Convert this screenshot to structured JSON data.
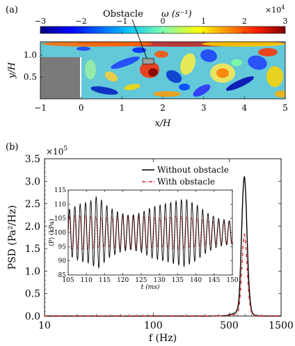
{
  "panel_a": {
    "label": "(a)",
    "colorbar": {
      "title": "Obstacle",
      "symbol": "ω (s⁻¹)",
      "scale_label": "×10",
      "scale_exp": "4",
      "ticks": [
        "−3",
        "−2",
        "−1",
        "0",
        "1",
        "2",
        "3"
      ],
      "range": [
        -3,
        3
      ]
    },
    "xlabel": "x/H",
    "ylabel": "y/H",
    "xticks": [
      "−1",
      "0",
      "1",
      "2",
      "3",
      "4",
      "5"
    ],
    "yticks": [
      "0.5",
      "1.0"
    ],
    "colors": {
      "wall": "#7a7a7a",
      "field_base": "#63c8d8"
    }
  },
  "panel_b": {
    "label": "(b)",
    "chart_data": [
      {
        "type": "line",
        "title": "",
        "xlabel": "f (Hz)",
        "ylabel": "PSD (Pa²/Hz)",
        "y_scale_label": "×10",
        "y_scale_exp": "5",
        "x_scale": "log",
        "xlim": [
          10,
          1500
        ],
        "ylim": [
          0,
          3.5
        ],
        "xticks": [
          "10",
          "100",
          "500",
          "1500"
        ],
        "yticks": [
          "0.0",
          "0.5",
          "1.0",
          "1.5",
          "2.0",
          "2.5",
          "3.0",
          "3.5"
        ],
        "legend_placement": "top-right",
        "series": [
          {
            "name": "Without obstacle",
            "color": "#000000",
            "style": "solid",
            "x": [
              10,
              100,
              300,
              450,
              500,
              550,
              580,
              610,
              630,
              650,
              670,
              690,
              710,
              730,
              760,
              800,
              850,
              900,
              1000,
              1500
            ],
            "y": [
              0.0,
              0.0,
              0.0,
              0.01,
              0.03,
              0.06,
              0.1,
              0.3,
              0.9,
              1.9,
              2.75,
              3.1,
              2.7,
              1.8,
              0.7,
              0.15,
              0.03,
              0.01,
              0.0,
              0.0
            ]
          },
          {
            "name": "With obstacle",
            "color": "#cc1f1f",
            "style": "dashdot",
            "x": [
              10,
              100,
              300,
              450,
              500,
              550,
              580,
              610,
              630,
              650,
              670,
              690,
              710,
              730,
              760,
              800,
              850,
              900,
              1000,
              1500
            ],
            "y": [
              0.0,
              0.0,
              0.0,
              0.01,
              0.02,
              0.03,
              0.05,
              0.15,
              0.45,
              1.0,
              1.55,
              1.82,
              1.6,
              1.1,
              0.45,
              0.1,
              0.02,
              0.0,
              0.0,
              0.0
            ]
          }
        ]
      },
      {
        "type": "line",
        "title": "",
        "xlabel": "t (ms)",
        "ylabel": "⟨P⟩ (kPa)",
        "xlim": [
          105,
          150
        ],
        "ylim": [
          85,
          115
        ],
        "xticks": [
          "105",
          "110",
          "115",
          "120",
          "125",
          "130",
          "135",
          "140",
          "145",
          "150"
        ],
        "yticks": [
          "85",
          "90",
          "95",
          "100",
          "105",
          "110",
          "115"
        ],
        "series": [
          {
            "name": "Without obstacle",
            "color": "#000000",
            "period_ms": 1.46,
            "mean": 100,
            "amplitude_envelope_t": [
              105,
              108,
              111,
              113,
              116,
              119,
              122,
              125,
              128,
              131,
              134,
              137,
              140,
              143,
              146,
              150
            ],
            "amplitude_envelope_a": [
              8,
              10,
              11,
              13,
              9,
              7,
              6,
              7,
              9,
              10,
              11,
              12,
              10,
              7,
              5,
              4
            ]
          },
          {
            "name": "With obstacle",
            "color": "#cc1f1f",
            "period_ms": 1.46,
            "mean": 100,
            "amplitude_envelope_t": [
              105,
              110,
              115,
              120,
              125,
              130,
              135,
              140,
              145,
              150
            ],
            "amplitude_envelope_a": [
              6,
              6,
              5,
              6,
              6,
              5,
              6,
              5,
              4,
              4
            ]
          }
        ]
      }
    ]
  }
}
